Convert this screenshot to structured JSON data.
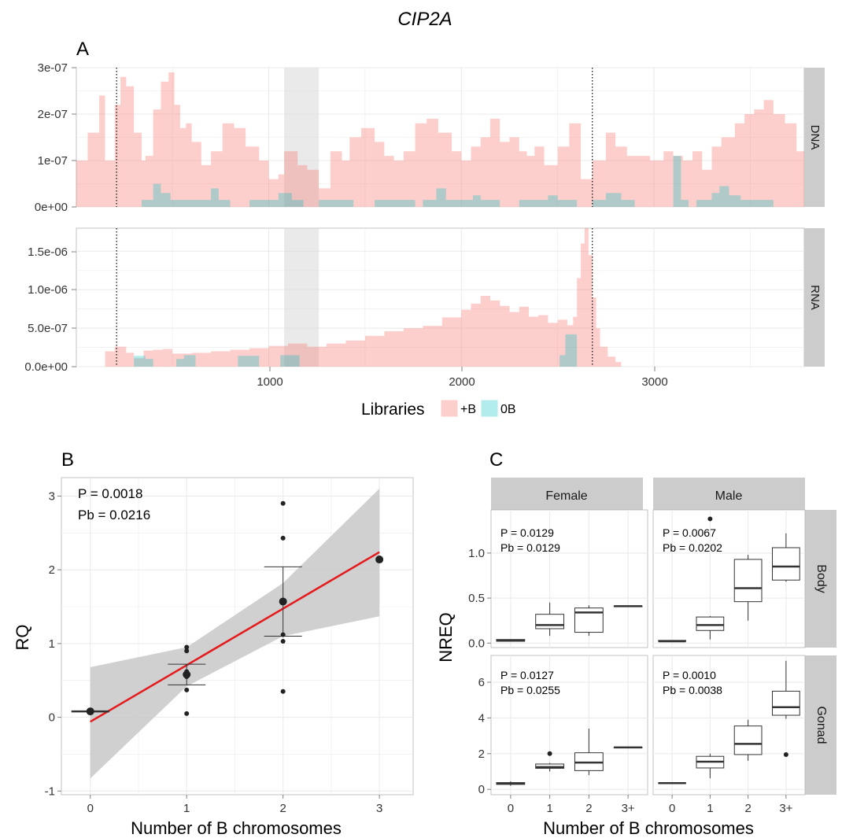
{
  "figure": {
    "title": "CIP2A"
  },
  "colors": {
    "plus_b": "#f8766d",
    "zero_b": "#00bfc4",
    "panel_bg": "#ffffff",
    "grid": "#ebebeb",
    "strip": "#cccccc",
    "highlight": "#d9d9d9",
    "fit_line": "#e41a1c",
    "ribbon": "#c8c8c8"
  },
  "panel_a": {
    "label": "A",
    "legend": {
      "title": "Libraries",
      "items": [
        "+B",
        "0B"
      ]
    },
    "x_ticks": [
      "1000",
      "2000",
      "3000"
    ],
    "dotted_x": [
      210,
      2680
    ],
    "shaded_x": [
      1080,
      1260
    ],
    "xlim": [
      1,
      3780
    ],
    "facets": [
      {
        "label": "DNA",
        "y_ticks": [
          "0e+00",
          "1e-07",
          "2e-07",
          "3e-07"
        ]
      },
      {
        "label": "RNA",
        "y_ticks": [
          "0.0e+00",
          "5.0e-07",
          "1.0e-06",
          "1.5e-06"
        ]
      }
    ]
  },
  "panel_b": {
    "label": "B",
    "xlabel": "Number of B chromosomes",
    "ylabel": "RQ",
    "stats": [
      "P =  0.0018",
      "Pb =  0.0216"
    ],
    "x_ticks": [
      "0",
      "1",
      "2",
      "3"
    ],
    "y_ticks": [
      "-1",
      "0",
      "1",
      "2",
      "3"
    ]
  },
  "panel_c": {
    "label": "C",
    "xlabel": "Number of B chromosomes",
    "ylabel": "NREQ",
    "col_strips": [
      "Female",
      "Male"
    ],
    "row_strips": [
      "Body",
      "Gonad"
    ],
    "x_ticks": [
      "0",
      "1",
      "2",
      "3+"
    ],
    "body_y_ticks": [
      "0.0",
      "0.5",
      "1.0"
    ],
    "gonad_y_ticks": [
      "0",
      "2",
      "4",
      "6"
    ],
    "stats": {
      "female_body": [
        "P = 0.0129",
        "Pb = 0.0129"
      ],
      "male_body": [
        "P = 0.0067",
        "Pb = 0.0202"
      ],
      "female_gonad": [
        "P = 0.0127",
        "Pb = 0.0255"
      ],
      "male_gonad": [
        "P = 0.0010",
        "Pb = 0.0038"
      ]
    }
  },
  "chart_data": [
    {
      "type": "area",
      "panel": "A",
      "facet": "DNA",
      "xlim": [
        1,
        3780
      ],
      "ylim": [
        0,
        3e-07
      ],
      "series": [
        {
          "name": "+B",
          "x": [
            0,
            60,
            120,
            150,
            200,
            230,
            260,
            300,
            340,
            360,
            400,
            440,
            480,
            510,
            540,
            570,
            600,
            650,
            700,
            760,
            820,
            880,
            950,
            1000,
            1050,
            1080,
            1150,
            1200,
            1260,
            1320,
            1380,
            1420,
            1480,
            1550,
            1600,
            1650,
            1700,
            1760,
            1820,
            1880,
            1950,
            2000,
            2050,
            2100,
            2150,
            2200,
            2250,
            2300,
            2340,
            2380,
            2430,
            2500,
            2560,
            2620,
            2680,
            2750,
            2800,
            2860,
            2920,
            2980,
            3050,
            3100,
            3150,
            3200,
            3250,
            3300,
            3350,
            3420,
            3470,
            3520,
            3570,
            3620,
            3680,
            3740,
            3780
          ],
          "y": [
            1e-07,
            1.6e-07,
            2.4e-07,
            1e-07,
            2.2e-07,
            2.8e-07,
            2.6e-07,
            1.6e-07,
            1e-07,
            1.1e-07,
            2.1e-07,
            2.7e-07,
            2.9e-07,
            2.2e-07,
            1.7e-07,
            1.8e-07,
            1.4e-07,
            9e-08,
            1.2e-07,
            1.8e-07,
            1.7e-07,
            1.3e-07,
            1e-07,
            6e-08,
            7e-08,
            1.2e-07,
            9e-08,
            8e-08,
            4e-08,
            1.2e-07,
            1e-07,
            1.5e-07,
            1.7e-07,
            1.4e-07,
            1.1e-07,
            1e-07,
            1.2e-07,
            1.8e-07,
            1.9e-07,
            1.6e-07,
            1.2e-07,
            1e-07,
            1.3e-07,
            1.5e-07,
            1.9e-07,
            1.4e-07,
            1.5e-07,
            1.2e-07,
            1.1e-07,
            1.3e-07,
            9e-08,
            1.3e-07,
            1.8e-07,
            6e-08,
            1e-07,
            1.6e-07,
            1.3e-07,
            1.1e-07,
            1.1e-07,
            1e-07,
            1.2e-07,
            1.1e-07,
            1e-07,
            1.2e-07,
            8e-08,
            1.3e-07,
            1.5e-07,
            1.8e-07,
            2e-07,
            2.1e-07,
            2.3e-07,
            2e-07,
            1.8e-07,
            1.2e-07,
            3e-08
          ]
        },
        {
          "name": "0B",
          "x": [
            0,
            340,
            400,
            440,
            490,
            700,
            740,
            800,
            900,
            1050,
            1120,
            1180,
            1260,
            1440,
            1550,
            1620,
            1700,
            1760,
            1800,
            1870,
            1920,
            2000,
            2060,
            2100,
            2200,
            2300,
            2400,
            2450,
            2500,
            2600,
            2680,
            2750,
            2830,
            2900,
            2960,
            3100,
            3140,
            3180,
            3220,
            3300,
            3340,
            3390,
            3450,
            3550,
            3620,
            3780
          ],
          "y": [
            0,
            1.5e-08,
            5e-08,
            3e-08,
            1.5e-08,
            4e-08,
            1.5e-08,
            0,
            1.5e-08,
            3e-08,
            1.5e-08,
            0,
            1.5e-08,
            0,
            1.5e-08,
            1.5e-08,
            1.5e-08,
            0,
            1.5e-08,
            4e-08,
            1.5e-08,
            1.5e-08,
            2.5e-08,
            1.5e-08,
            0,
            1.5e-08,
            1.5e-08,
            2.5e-08,
            1.5e-08,
            0,
            1.5e-08,
            3e-08,
            1.5e-08,
            0,
            0,
            1.1e-07,
            1.5e-08,
            0,
            1.5e-08,
            3e-08,
            4.5e-08,
            2.5e-08,
            1.5e-08,
            1.5e-08,
            0,
            0
          ]
        }
      ]
    },
    {
      "type": "area",
      "panel": "A",
      "facet": "RNA",
      "xlim": [
        1,
        3780
      ],
      "ylim": [
        0,
        1.8e-06
      ],
      "series": [
        {
          "name": "+B",
          "x": [
            0,
            130,
            150,
            200,
            260,
            300,
            350,
            400,
            450,
            500,
            600,
            700,
            800,
            900,
            1000,
            1100,
            1200,
            1300,
            1400,
            1500,
            1600,
            1700,
            1800,
            1900,
            2000,
            2050,
            2100,
            2150,
            2200,
            2250,
            2300,
            2350,
            2400,
            2450,
            2500,
            2550,
            2580,
            2600,
            2620,
            2640,
            2660,
            2680,
            2700,
            2720,
            2760,
            2800,
            2830,
            3780
          ],
          "y": [
            0,
            0,
            2e-07,
            2.6e-07,
            1.8e-07,
            1.1e-07,
            2.1e-07,
            2.2e-07,
            2.3e-07,
            1.7e-07,
            1.8e-07,
            2e-07,
            2.2e-07,
            2.4e-07,
            2.7e-07,
            3e-07,
            2.6e-07,
            3e-07,
            3.4e-07,
            4e-07,
            4.6e-07,
            5e-07,
            5.3e-07,
            6.4e-07,
            7.4e-07,
            8.2e-07,
            9.2e-07,
            8.6e-07,
            7.9e-07,
            7.1e-07,
            7.8e-07,
            6.5e-07,
            6.7e-07,
            5.7e-07,
            6.1e-07,
            5.4e-07,
            6.5e-07,
            1.15e-06,
            1.6e-06,
            1.8e-06,
            1.45e-06,
            9e-07,
            5e-07,
            2.6e-07,
            1.3e-07,
            6e-08,
            0,
            0
          ]
        },
        {
          "name": "0B",
          "x": [
            0,
            260,
            300,
            360,
            400,
            520,
            560,
            620,
            840,
            950,
            1060,
            1130,
            1160,
            2450,
            2510,
            2540,
            2580,
            2600,
            3780
          ],
          "y": [
            0,
            0,
            1.4e-07,
            1e-07,
            0,
            1e-07,
            1.5e-07,
            0,
            1.4e-07,
            0,
            1.5e-07,
            1.5e-07,
            0,
            0,
            1.5e-07,
            4.2e-07,
            4.2e-07,
            0,
            0
          ]
        }
      ]
    },
    {
      "type": "scatter",
      "panel": "B",
      "xlabel": "Number of B chromosomes",
      "ylabel": "RQ",
      "xlim": [
        -0.3,
        3.35
      ],
      "ylim": [
        -1.05,
        3.25
      ],
      "points": {
        "x": [
          0,
          1,
          1,
          1,
          1,
          1,
          1,
          1,
          2,
          2,
          2,
          2,
          2,
          3
        ],
        "y": [
          0.08,
          0.95,
          0.9,
          0.62,
          0.55,
          0.37,
          0.05,
          0.57,
          2.9,
          2.43,
          1.12,
          1.03,
          0.35,
          2.14
        ]
      },
      "means": {
        "x": [
          0,
          1,
          2,
          3
        ],
        "y": [
          0.08,
          0.58,
          1.57,
          2.14
        ]
      },
      "error_bars": [
        {
          "x": 0,
          "low": 0.08,
          "high": 0.08
        },
        {
          "x": 1,
          "low": 0.44,
          "high": 0.72
        },
        {
          "x": 2,
          "low": 1.1,
          "high": 2.04
        }
      ],
      "fit": {
        "x": [
          0,
          3
        ],
        "y": [
          -0.06,
          2.24
        ]
      },
      "confidence_band": {
        "x": [
          0,
          1,
          2,
          3
        ],
        "low": [
          -0.83,
          0.42,
          1.1,
          1.37
        ],
        "high": [
          0.68,
          0.95,
          1.82,
          3.1
        ]
      }
    },
    {
      "type": "boxplot",
      "panel": "C",
      "facet": "Female / Body",
      "categories": [
        "0",
        "1",
        "2",
        "3+"
      ],
      "ylim": [
        -0.05,
        1.48
      ],
      "boxes": [
        {
          "min": 0.02,
          "q1": 0.02,
          "median": 0.03,
          "q3": 0.04,
          "max": 0.04
        },
        {
          "min": 0.08,
          "q1": 0.16,
          "median": 0.2,
          "q3": 0.32,
          "max": 0.45
        },
        {
          "min": 0.08,
          "q1": 0.12,
          "median": 0.34,
          "q3": 0.39,
          "max": 0.42
        },
        {
          "min": 0.41,
          "q1": 0.41,
          "median": 0.41,
          "q3": 0.41,
          "max": 0.41
        }
      ],
      "outliers": []
    },
    {
      "type": "boxplot",
      "panel": "C",
      "facet": "Male / Body",
      "categories": [
        "0",
        "1",
        "2",
        "3+"
      ],
      "ylim": [
        -0.05,
        1.48
      ],
      "boxes": [
        {
          "min": 0.02,
          "q1": 0.02,
          "median": 0.02,
          "q3": 0.03,
          "max": 0.03
        },
        {
          "min": 0.04,
          "q1": 0.14,
          "median": 0.2,
          "q3": 0.29,
          "max": 0.3
        },
        {
          "min": 0.25,
          "q1": 0.46,
          "median": 0.61,
          "q3": 0.93,
          "max": 0.98
        },
        {
          "min": 0.68,
          "q1": 0.7,
          "median": 0.85,
          "q3": 1.06,
          "max": 1.22
        }
      ],
      "outliers": [
        {
          "x": "1",
          "y": 1.38
        }
      ]
    },
    {
      "type": "boxplot",
      "panel": "C",
      "facet": "Female / Gonad",
      "categories": [
        "0",
        "1",
        "2",
        "3+"
      ],
      "ylim": [
        -0.3,
        7.5
      ],
      "boxes": [
        {
          "min": 0.2,
          "q1": 0.28,
          "median": 0.32,
          "q3": 0.38,
          "max": 0.45
        },
        {
          "min": 1.0,
          "q1": 1.18,
          "median": 1.25,
          "q3": 1.42,
          "max": 1.48
        },
        {
          "min": 0.8,
          "q1": 1.05,
          "median": 1.5,
          "q3": 2.05,
          "max": 3.4
        },
        {
          "min": 2.35,
          "q1": 2.35,
          "median": 2.35,
          "q3": 2.35,
          "max": 2.35
        }
      ],
      "outliers": [
        {
          "x": "1",
          "y": 2.0
        }
      ]
    },
    {
      "type": "boxplot",
      "panel": "C",
      "facet": "Male / Gonad",
      "categories": [
        "0",
        "1",
        "2",
        "3+"
      ],
      "ylim": [
        -0.3,
        7.5
      ],
      "boxes": [
        {
          "min": 0.32,
          "q1": 0.33,
          "median": 0.35,
          "q3": 0.36,
          "max": 0.37
        },
        {
          "min": 0.62,
          "q1": 1.2,
          "median": 1.55,
          "q3": 1.85,
          "max": 2.0
        },
        {
          "min": 1.6,
          "q1": 1.95,
          "median": 2.55,
          "q3": 3.55,
          "max": 3.9
        },
        {
          "min": 3.95,
          "q1": 4.15,
          "median": 4.6,
          "q3": 5.5,
          "max": 7.2
        }
      ],
      "outliers": [
        {
          "x": "3+",
          "y": 1.95
        }
      ]
    }
  ]
}
